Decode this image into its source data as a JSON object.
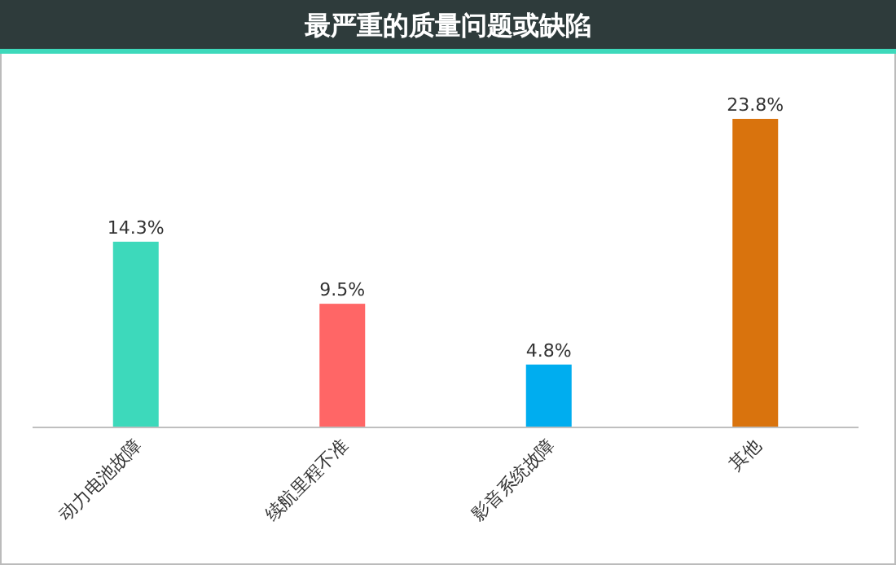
{
  "chart_data": {
    "type": "bar",
    "title": "最严重的质量问题或缺陷",
    "categories": [
      "动力电池故障",
      "续航里程不准",
      "影音系统故障",
      "其他"
    ],
    "values": [
      14.3,
      9.5,
      4.8,
      23.8
    ],
    "colors": [
      "#3dd9bb",
      "#ff6666",
      "#00adef",
      "#d9730d"
    ],
    "value_labels": [
      "14.3%",
      "9.5%",
      "4.8%",
      "23.8%"
    ]
  }
}
